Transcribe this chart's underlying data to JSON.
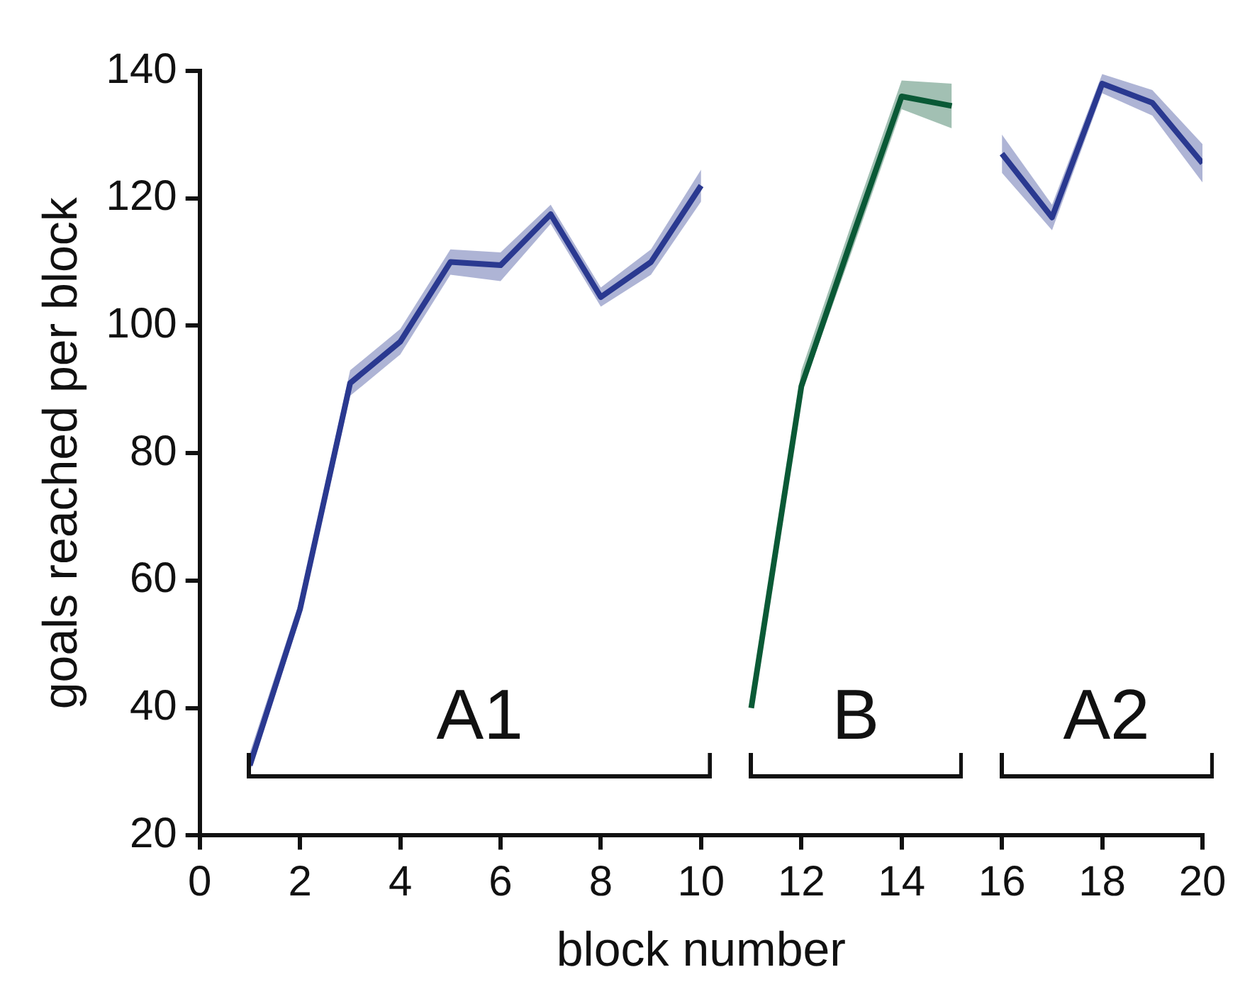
{
  "chart_data": {
    "type": "line",
    "xlabel": "block number",
    "ylabel": "goals reached per block",
    "xlim": [
      0,
      20
    ],
    "ylim": [
      20,
      140
    ],
    "xticks": [
      0,
      2,
      4,
      6,
      8,
      10,
      12,
      14,
      16,
      18,
      20
    ],
    "yticks": [
      20,
      40,
      60,
      80,
      100,
      120,
      140
    ],
    "annotations": [
      "A1",
      "B",
      "A2"
    ],
    "grid": false,
    "legend": false,
    "marker": "none",
    "line_style": "solid",
    "series": [
      {
        "color": "#2b3990",
        "x": [
          1,
          2,
          3,
          4,
          5,
          6,
          7,
          8,
          9,
          10
        ],
        "values": [
          31,
          55.5,
          91,
          97.5,
          110,
          109.5,
          117.5,
          104.5,
          110,
          122
        ],
        "lower": [
          30,
          54,
          89,
          95.5,
          108,
          107,
          116,
          103,
          108,
          119.5
        ],
        "upper": [
          33,
          57,
          93,
          99.5,
          112,
          111.5,
          119,
          106,
          112,
          124.5
        ]
      },
      {
        "color": "#0b5a36",
        "x": [
          11,
          12,
          13,
          14,
          15
        ],
        "values": [
          40,
          90.5,
          113.5,
          136,
          134.5
        ],
        "lower": [
          40,
          89.5,
          111.5,
          134,
          131
        ],
        "upper": [
          41,
          93,
          116,
          138.5,
          138
        ]
      },
      {
        "color": "#2b3990",
        "x": [
          16,
          17,
          18,
          19,
          20
        ],
        "values": [
          127,
          117,
          138,
          135,
          125.5
        ],
        "lower": [
          124,
          115,
          136.5,
          133,
          122.5
        ],
        "upper": [
          130,
          119,
          139.5,
          137,
          128.5
        ]
      }
    ]
  }
}
